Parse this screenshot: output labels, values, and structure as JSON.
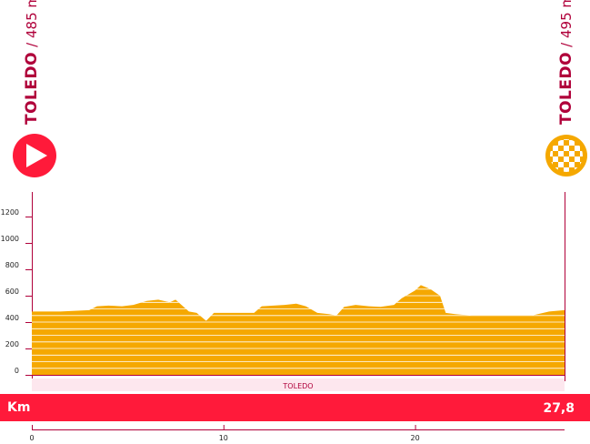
{
  "header": {
    "start": {
      "city": "TOLEDO",
      "altitude": "/ 485 m."
    },
    "finish": {
      "city": "TOLEDO",
      "altitude": "/ 495 m."
    }
  },
  "place_label": "TOLEDO",
  "km_bar": {
    "label": "Km",
    "total": "27,8"
  },
  "colors": {
    "profile_fill": "#f5a800",
    "band_lines": "#ffffff",
    "axis": "#b0003a",
    "km_bar": "#ff1a3a",
    "place_band": "#fde7ee",
    "start_icon": "#ff1a3a",
    "finish_icon": "#f5a800"
  },
  "icons": {
    "start": "play-start-icon",
    "finish": "checkered-flag-icon"
  },
  "chart_data": {
    "type": "area",
    "title": "",
    "xlabel": "",
    "ylabel": "",
    "xlim": [
      0,
      27.8
    ],
    "ylim": [
      0,
      1300
    ],
    "y_ticks": [
      0,
      200,
      400,
      600,
      800,
      1000,
      1200
    ],
    "x_ticks": [
      0,
      10,
      20
    ],
    "grid": false,
    "series": [
      {
        "x": [
          0,
          1.5,
          3,
          3.4,
          4,
          4.7,
          5.3,
          6,
          6.6,
          7.2,
          7.5,
          8.2,
          8.6,
          9.1,
          9.5,
          10.1,
          10.8,
          11.6,
          12,
          12.6,
          13.2,
          13.8,
          14.3,
          14.9,
          15.5,
          15.9,
          16.3,
          16.9,
          17.6,
          18.2,
          18.9,
          19.3,
          20,
          20.3,
          20.8,
          21.3,
          21.6,
          22.1,
          23,
          24,
          25,
          26.1,
          27,
          27.8
        ],
        "y": [
          480,
          480,
          490,
          520,
          525,
          520,
          530,
          560,
          570,
          550,
          570,
          480,
          470,
          410,
          470,
          470,
          470,
          470,
          520,
          525,
          530,
          540,
          520,
          470,
          460,
          450,
          515,
          530,
          520,
          515,
          530,
          580,
          640,
          680,
          650,
          600,
          470,
          460,
          450,
          450,
          450,
          450,
          480,
          490
        ]
      }
    ]
  }
}
